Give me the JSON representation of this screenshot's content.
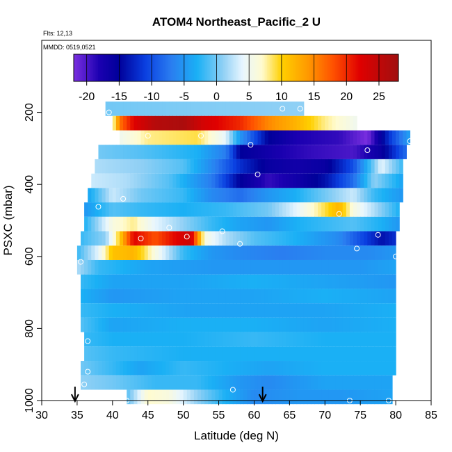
{
  "chart_data": {
    "type": "heatmap",
    "title": "ATOM4 Northeast_Pacific_2 U",
    "subtitle_flights": "Flts: 12,13",
    "subtitle_dates": "MMDD: 0519,0521",
    "xlabel": "Latitude (deg N)",
    "ylabel": "PSXC (mbar)",
    "xlim": [
      30,
      85
    ],
    "ylim": [
      1000,
      0
    ],
    "x_ticks": [
      30,
      35,
      40,
      45,
      50,
      55,
      60,
      65,
      70,
      75,
      80,
      85
    ],
    "x_tick_labels": [
      "30",
      "35",
      "40",
      "45",
      "50",
      "55",
      "60",
      "65",
      "70",
      "75",
      "80",
      "85"
    ],
    "y_ticks": [
      200,
      400,
      600,
      800,
      1000
    ],
    "y_tick_labels": [
      "200",
      "400",
      "600",
      "800",
      "1000"
    ],
    "colorbar": {
      "range": [
        -22,
        28
      ],
      "ticks": [
        -20,
        -15,
        -10,
        -5,
        0,
        5,
        10,
        15,
        20,
        25
      ],
      "tick_labels": [
        "-20",
        "-15",
        "-10",
        "-5",
        "0",
        "5",
        "10",
        "15",
        "20",
        "25"
      ],
      "stops": [
        {
          "v": -22,
          "c": "#7b2fe0"
        },
        {
          "v": -18,
          "c": "#1a00b0"
        },
        {
          "v": -15,
          "c": "#00009a"
        },
        {
          "v": -11,
          "c": "#0a3fe0"
        },
        {
          "v": -7,
          "c": "#2a7df0"
        },
        {
          "v": -3,
          "c": "#1ab0f5"
        },
        {
          "v": 1,
          "c": "#90d0f5"
        },
        {
          "v": 4,
          "c": "#e8f6ff"
        },
        {
          "v": 7,
          "c": "#fffbd0"
        },
        {
          "v": 10,
          "c": "#ffd000"
        },
        {
          "v": 14,
          "c": "#ff9a00"
        },
        {
          "v": 18,
          "c": "#ff5000"
        },
        {
          "v": 22,
          "c": "#e00000"
        },
        {
          "v": 28,
          "c": "#a01010"
        }
      ]
    },
    "rows": [
      {
        "p": 190,
        "x0": 39,
        "x1": 67,
        "knots": [
          [
            39,
            0
          ],
          [
            67,
            1
          ]
        ]
      },
      {
        "p": 230,
        "x0": 40,
        "x1": 74.5,
        "knots": [
          [
            40,
            6
          ],
          [
            41,
            16
          ],
          [
            43,
            22
          ],
          [
            46,
            26
          ],
          [
            50,
            27
          ],
          [
            53,
            23
          ],
          [
            58,
            20
          ],
          [
            62,
            15
          ],
          [
            66,
            12
          ],
          [
            70,
            8
          ],
          [
            74.5,
            5
          ]
        ]
      },
      {
        "p": 270,
        "x0": 41,
        "x1": 82,
        "knots": [
          [
            41,
            5
          ],
          [
            45,
            8
          ],
          [
            52,
            9
          ],
          [
            56,
            4
          ],
          [
            58,
            -5
          ],
          [
            62,
            -15
          ],
          [
            66,
            -18
          ],
          [
            72,
            -19
          ],
          [
            76,
            -22
          ],
          [
            79,
            -12
          ],
          [
            82,
            -4
          ]
        ]
      },
      {
        "p": 310,
        "x0": 38,
        "x1": 81.5,
        "knots": [
          [
            38,
            0
          ],
          [
            44,
            -1
          ],
          [
            52,
            -3
          ],
          [
            56,
            -7
          ],
          [
            58,
            -15
          ],
          [
            64,
            -18
          ],
          [
            68,
            -19
          ],
          [
            74,
            -20
          ],
          [
            78,
            -16
          ],
          [
            81.5,
            -8
          ]
        ]
      },
      {
        "p": 350,
        "x0": 37.5,
        "x1": 81,
        "knots": [
          [
            37.5,
            2
          ],
          [
            44,
            1
          ],
          [
            50,
            -1
          ],
          [
            54,
            -6
          ],
          [
            58,
            -12
          ],
          [
            62,
            -16
          ],
          [
            66,
            -17
          ],
          [
            70,
            -16
          ],
          [
            74,
            -10
          ],
          [
            78,
            4
          ],
          [
            81,
            -2
          ]
        ]
      },
      {
        "p": 390,
        "x0": 37,
        "x1": 81,
        "knots": [
          [
            37,
            3
          ],
          [
            42,
            2
          ],
          [
            48,
            -1
          ],
          [
            54,
            -7
          ],
          [
            58,
            -15
          ],
          [
            62,
            -19
          ],
          [
            66,
            -17
          ],
          [
            70,
            -14
          ],
          [
            74,
            -8
          ],
          [
            77,
            1
          ],
          [
            81,
            -4
          ]
        ]
      },
      {
        "p": 430,
        "x0": 36.5,
        "x1": 81,
        "knots": [
          [
            36.5,
            -4
          ],
          [
            40,
            3
          ],
          [
            44,
            0
          ],
          [
            50,
            -2
          ],
          [
            54,
            -6
          ],
          [
            58,
            -8
          ],
          [
            62,
            -5
          ],
          [
            66,
            -3
          ],
          [
            70,
            0
          ],
          [
            74,
            3
          ],
          [
            77,
            -2
          ],
          [
            81,
            -5
          ]
        ]
      },
      {
        "p": 470,
        "x0": 36,
        "x1": 80.5,
        "knots": [
          [
            36,
            -5
          ],
          [
            40,
            -1
          ],
          [
            44,
            -2
          ],
          [
            50,
            -3
          ],
          [
            56,
            -2
          ],
          [
            62,
            0
          ],
          [
            66,
            4
          ],
          [
            70,
            9
          ],
          [
            72,
            12
          ],
          [
            74,
            6
          ],
          [
            77,
            2
          ],
          [
            80.5,
            -3
          ]
        ]
      },
      {
        "p": 510,
        "x0": 36,
        "x1": 80.5,
        "knots": [
          [
            36,
            -3
          ],
          [
            40,
            6
          ],
          [
            43,
            8
          ],
          [
            46,
            4
          ],
          [
            50,
            1
          ],
          [
            54,
            -2
          ],
          [
            58,
            -4
          ],
          [
            62,
            -5
          ],
          [
            66,
            -3
          ],
          [
            70,
            -2
          ],
          [
            74,
            -1
          ],
          [
            78,
            -3
          ],
          [
            80.5,
            -5
          ]
        ]
      },
      {
        "p": 550,
        "x0": 35.5,
        "x1": 80,
        "knots": [
          [
            35.5,
            -2
          ],
          [
            39,
            1
          ],
          [
            41,
            10
          ],
          [
            43,
            22
          ],
          [
            46,
            18
          ],
          [
            49,
            22
          ],
          [
            51,
            24
          ],
          [
            53,
            6
          ],
          [
            56,
            2
          ],
          [
            60,
            -1
          ],
          [
            66,
            -3
          ],
          [
            72,
            -6
          ],
          [
            78,
            -14
          ],
          [
            80,
            -12
          ]
        ]
      },
      {
        "p": 590,
        "x0": 35,
        "x1": 80,
        "knots": [
          [
            35,
            -2
          ],
          [
            38,
            4
          ],
          [
            40,
            11
          ],
          [
            43,
            12
          ],
          [
            46,
            6
          ],
          [
            50,
            -2
          ],
          [
            54,
            -5
          ],
          [
            58,
            -6
          ],
          [
            64,
            -7
          ],
          [
            70,
            -6
          ],
          [
            76,
            -6
          ],
          [
            80,
            -5
          ]
        ]
      },
      {
        "p": 630,
        "x0": 35,
        "x1": 80,
        "knots": [
          [
            35,
            2
          ],
          [
            38,
            -2
          ],
          [
            45,
            -4
          ],
          [
            55,
            -5
          ],
          [
            65,
            -5
          ],
          [
            75,
            -5
          ],
          [
            80,
            -4
          ]
        ]
      },
      {
        "p": 670,
        "x0": 35.5,
        "x1": 80,
        "knots": [
          [
            35.5,
            -2
          ],
          [
            40,
            -4
          ],
          [
            50,
            -4
          ],
          [
            60,
            -3
          ],
          [
            70,
            -4
          ],
          [
            80,
            -5
          ]
        ]
      },
      {
        "p": 710,
        "x0": 35.5,
        "x1": 80,
        "knots": [
          [
            35.5,
            -3
          ],
          [
            40,
            -5
          ],
          [
            50,
            -4
          ],
          [
            60,
            -4
          ],
          [
            70,
            -3
          ],
          [
            80,
            -4
          ]
        ]
      },
      {
        "p": 750,
        "x0": 35.5,
        "x1": 80,
        "knots": [
          [
            35.5,
            -2
          ],
          [
            40,
            -3
          ],
          [
            50,
            -4
          ],
          [
            60,
            -4
          ],
          [
            70,
            -4
          ],
          [
            80,
            -3
          ]
        ]
      },
      {
        "p": 790,
        "x0": 35.5,
        "x1": 80,
        "knots": [
          [
            35.5,
            -1
          ],
          [
            40,
            -4
          ],
          [
            50,
            -3
          ],
          [
            60,
            -3
          ],
          [
            70,
            -4
          ],
          [
            80,
            -3
          ]
        ]
      },
      {
        "p": 830,
        "x0": 36,
        "x1": 80,
        "knots": [
          [
            36,
            -2
          ],
          [
            40,
            -3
          ],
          [
            50,
            -3
          ],
          [
            60,
            -2
          ],
          [
            70,
            -3
          ],
          [
            80,
            -3
          ]
        ]
      },
      {
        "p": 870,
        "x0": 36,
        "x1": 80,
        "knots": [
          [
            36,
            -1
          ],
          [
            40,
            -2
          ],
          [
            50,
            -3
          ],
          [
            60,
            -3
          ],
          [
            70,
            -3
          ],
          [
            80,
            -3
          ]
        ]
      },
      {
        "p": 910,
        "x0": 35.5,
        "x1": 80,
        "knots": [
          [
            35.5,
            0
          ],
          [
            40,
            -2
          ],
          [
            44,
            -4
          ],
          [
            50,
            -2
          ],
          [
            56,
            -3
          ],
          [
            62,
            -4
          ],
          [
            70,
            -3
          ],
          [
            80,
            -3
          ]
        ]
      },
      {
        "p": 950,
        "x0": 35.5,
        "x1": 79.5,
        "knots": [
          [
            35.5,
            1
          ],
          [
            40,
            0
          ],
          [
            46,
            -2
          ],
          [
            52,
            -2
          ],
          [
            58,
            -5
          ],
          [
            62,
            -6
          ],
          [
            70,
            -4
          ],
          [
            79.5,
            -4
          ]
        ]
      },
      {
        "p": 990,
        "x0": 42,
        "x1": 79.5,
        "knots": [
          [
            42,
            -1
          ],
          [
            45,
            7
          ],
          [
            48,
            6
          ],
          [
            52,
            1
          ],
          [
            56,
            -3
          ],
          [
            60,
            -6
          ],
          [
            66,
            -5
          ],
          [
            72,
            -5
          ],
          [
            79.5,
            -4
          ]
        ]
      }
    ],
    "row_height_mbar": 40,
    "markers": [
      [
        39.5,
        200
      ],
      [
        45,
        265
      ],
      [
        52.5,
        265
      ],
      [
        59.5,
        290
      ],
      [
        64,
        190
      ],
      [
        66.5,
        190
      ],
      [
        76,
        305
      ],
      [
        82,
        280
      ],
      [
        60.5,
        372
      ],
      [
        38,
        462
      ],
      [
        41.5,
        440
      ],
      [
        72,
        482
      ],
      [
        48,
        520
      ],
      [
        50.5,
        545
      ],
      [
        44,
        550
      ],
      [
        55.5,
        530
      ],
      [
        58,
        565
      ],
      [
        74.5,
        578
      ],
      [
        77.5,
        540
      ],
      [
        80,
        600
      ],
      [
        35.5,
        615
      ],
      [
        36.5,
        835
      ],
      [
        36.5,
        920
      ],
      [
        36,
        955
      ],
      [
        57,
        970
      ],
      [
        73.5,
        1000
      ],
      [
        79,
        1000
      ],
      [
        42,
        1000
      ]
    ],
    "arrows": [
      34.7,
      61.2
    ]
  }
}
